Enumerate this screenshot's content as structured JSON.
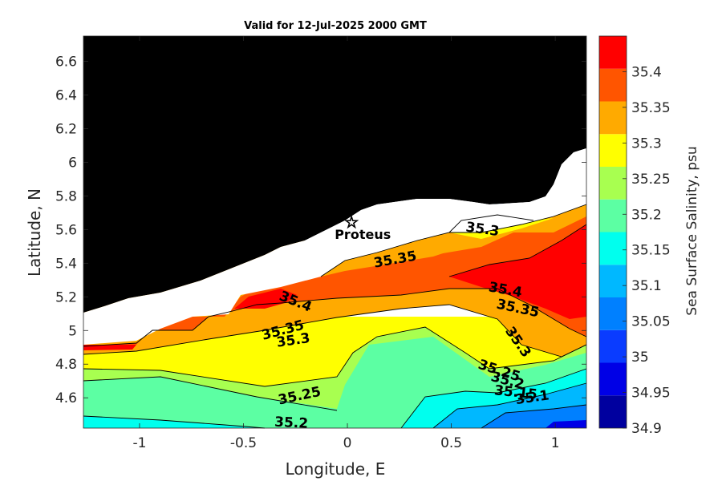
{
  "chart_data": {
    "type": "heatmap",
    "title": "Valid for 12-Jul-2025 2000 GMT",
    "xlabel": "Longitude, E",
    "ylabel": "Latitude, N",
    "xlim": [
      -1.27,
      1.15
    ],
    "ylim": [
      4.42,
      6.75
    ],
    "xticks": [
      -1,
      -0.5,
      0,
      0.5,
      1
    ],
    "xtick_labels": [
      "-1",
      "-0.5",
      "0",
      "0.5",
      "1"
    ],
    "yticks": [
      4.6,
      4.8,
      5,
      5.2,
      5.4,
      5.6,
      5.8,
      6,
      6.2,
      6.4,
      6.6
    ],
    "ytick_labels": [
      "4.6",
      "4.8",
      "5",
      "5.2",
      "5.4",
      "5.6",
      "5.8",
      "6",
      "6.2",
      "6.4",
      "6.6"
    ],
    "colorbar": {
      "label": "Sea Surface Salinity, psu",
      "range": [
        34.9,
        35.45
      ],
      "ticks": [
        34.9,
        34.95,
        35,
        35.05,
        35.1,
        35.15,
        35.2,
        35.25,
        35.3,
        35.35,
        35.4
      ],
      "tick_labels": [
        "34.9",
        "34.95",
        "35",
        "35.05",
        "35.1",
        "35.15",
        "35.2",
        "35.25",
        "35.3",
        "35.35",
        "35.4"
      ],
      "colors": [
        "#00009f",
        "#0000e6",
        "#0a3cff",
        "#0080ff",
        "#00b8ff",
        "#00ffee",
        "#5cffa3",
        "#a8ff50",
        "#ffff00",
        "#ffaa00",
        "#ff5500",
        "#ff0000"
      ]
    },
    "land_color": "#000000",
    "contour_labels": [
      {
        "text": "35.3",
        "x": 0.65,
        "y": 5.6
      },
      {
        "text": "35.35",
        "x": 0.23,
        "y": 5.42
      },
      {
        "text": "35.4",
        "x": -0.25,
        "y": 5.17
      },
      {
        "text": "35.35",
        "x": -0.31,
        "y": 5.0
      },
      {
        "text": "35.3",
        "x": -0.26,
        "y": 4.94
      },
      {
        "text": "35.4",
        "x": 0.76,
        "y": 5.24
      },
      {
        "text": "35.35",
        "x": 0.82,
        "y": 5.13
      },
      {
        "text": "35.3",
        "x": 0.82,
        "y": 4.93
      },
      {
        "text": "35.25",
        "x": 0.73,
        "y": 4.76
      },
      {
        "text": "35.2",
        "x": 0.77,
        "y": 4.7
      },
      {
        "text": "35.15",
        "x": 0.81,
        "y": 4.63
      },
      {
        "text": "35.1",
        "x": 0.89,
        "y": 4.6
      },
      {
        "text": "35.25",
        "x": -0.23,
        "y": 4.61
      },
      {
        "text": "35.2",
        "x": -0.27,
        "y": 4.45
      }
    ],
    "point": {
      "label": "Proteus",
      "x": 0.02,
      "y": 5.64
    }
  }
}
